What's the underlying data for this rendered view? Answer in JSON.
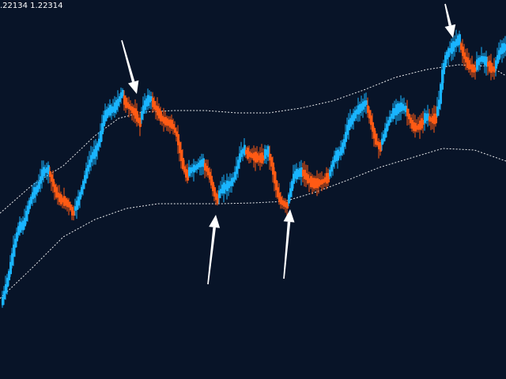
{
  "header": {
    "price_readout": ".22134 1.22314"
  },
  "colors": {
    "background": "#081428",
    "bull": "#19b4ff",
    "bear": "#ff5a14",
    "band": "#ffffff",
    "arrow": "#ffffff"
  },
  "chart_data": {
    "type": "candlestick",
    "title": "",
    "xlabel": "",
    "ylabel": "",
    "ylim": [
      0,
      480
    ],
    "grid": false,
    "candle_segments": [
      {
        "dir": "up",
        "points": [
          [
            2,
            385
          ],
          [
            6,
            370
          ],
          [
            12,
            345
          ],
          [
            18,
            312
          ],
          [
            24,
            288
          ],
          [
            30,
            285
          ],
          [
            36,
            262
          ],
          [
            42,
            245
          ],
          [
            48,
            238
          ],
          [
            54,
            218
          ],
          [
            60,
            215
          ]
        ]
      },
      {
        "dir": "down",
        "points": [
          [
            62,
            218
          ],
          [
            66,
            228
          ],
          [
            70,
            242
          ],
          [
            76,
            252
          ],
          [
            82,
            255
          ],
          [
            88,
            260
          ],
          [
            92,
            270
          ]
        ]
      },
      {
        "dir": "up",
        "points": [
          [
            94,
            266
          ],
          [
            98,
            258
          ],
          [
            104,
            238
          ],
          [
            110,
            216
          ],
          [
            116,
            198
          ],
          [
            120,
            194
          ],
          [
            126,
            178
          ],
          [
            132,
            148
          ],
          [
            138,
            140
          ],
          [
            144,
            138
          ],
          [
            150,
            128
          ],
          [
            154,
            118
          ]
        ]
      },
      {
        "dir": "down",
        "points": [
          [
            156,
            125
          ],
          [
            160,
            132
          ],
          [
            166,
            138
          ],
          [
            172,
            145
          ],
          [
            176,
            155
          ]
        ]
      },
      {
        "dir": "up",
        "points": [
          [
            178,
            150
          ],
          [
            182,
            135
          ],
          [
            186,
            128
          ],
          [
            190,
            125
          ]
        ]
      },
      {
        "dir": "down",
        "points": [
          [
            192,
            128
          ],
          [
            196,
            135
          ],
          [
            200,
            142
          ],
          [
            206,
            152
          ],
          [
            212,
            155
          ],
          [
            218,
            158
          ],
          [
            224,
            172
          ],
          [
            228,
            192
          ],
          [
            232,
            212
          ],
          [
            236,
            222
          ]
        ]
      },
      {
        "dir": "up",
        "points": [
          [
            238,
            218
          ],
          [
            242,
            215
          ],
          [
            248,
            212
          ],
          [
            252,
            208
          ],
          [
            256,
            206
          ]
        ]
      },
      {
        "dir": "down",
        "points": [
          [
            258,
            210
          ],
          [
            262,
            215
          ],
          [
            266,
            225
          ],
          [
            270,
            240
          ],
          [
            274,
            252
          ]
        ]
      },
      {
        "dir": "up",
        "points": [
          [
            276,
            248
          ],
          [
            280,
            240
          ],
          [
            286,
            236
          ],
          [
            292,
            232
          ],
          [
            296,
            226
          ],
          [
            300,
            212
          ],
          [
            304,
            196
          ],
          [
            308,
            190
          ]
        ]
      },
      {
        "dir": "down",
        "points": [
          [
            310,
            192
          ],
          [
            316,
            196
          ],
          [
            320,
            198
          ],
          [
            326,
            200
          ],
          [
            332,
            200
          ]
        ]
      },
      {
        "dir": "up",
        "points": [
          [
            334,
            196
          ],
          [
            338,
            192
          ]
        ]
      },
      {
        "dir": "down",
        "points": [
          [
            340,
            196
          ],
          [
            344,
            208
          ],
          [
            348,
            230
          ],
          [
            352,
            248
          ],
          [
            356,
            256
          ],
          [
            362,
            260
          ]
        ]
      },
      {
        "dir": "up",
        "points": [
          [
            364,
            256
          ],
          [
            368,
            240
          ],
          [
            372,
            222
          ],
          [
            376,
            220
          ],
          [
            380,
            218
          ]
        ]
      },
      {
        "dir": "down",
        "points": [
          [
            382,
            218
          ],
          [
            386,
            222
          ],
          [
            390,
            228
          ],
          [
            396,
            232
          ],
          [
            402,
            232
          ],
          [
            408,
            230
          ],
          [
            414,
            225
          ]
        ]
      },
      {
        "dir": "up",
        "points": [
          [
            416,
            222
          ],
          [
            420,
            210
          ],
          [
            424,
            198
          ],
          [
            428,
            196
          ],
          [
            432,
            190
          ],
          [
            436,
            178
          ],
          [
            440,
            160
          ],
          [
            446,
            150
          ],
          [
            452,
            140
          ],
          [
            458,
            135
          ],
          [
            462,
            130
          ]
        ]
      },
      {
        "dir": "down",
        "points": [
          [
            464,
            135
          ],
          [
            468,
            148
          ],
          [
            472,
            165
          ],
          [
            476,
            180
          ],
          [
            480,
            186
          ]
        ]
      },
      {
        "dir": "up",
        "points": [
          [
            482,
            182
          ],
          [
            486,
            172
          ],
          [
            490,
            158
          ],
          [
            496,
            145
          ],
          [
            502,
            138
          ],
          [
            508,
            135
          ],
          [
            512,
            138
          ]
        ]
      },
      {
        "dir": "down",
        "points": [
          [
            514,
            140
          ],
          [
            518,
            150
          ],
          [
            522,
            160
          ],
          [
            528,
            162
          ],
          [
            534,
            155
          ]
        ]
      },
      {
        "dir": "up",
        "points": [
          [
            536,
            150
          ],
          [
            540,
            148
          ]
        ]
      },
      {
        "dir": "down",
        "points": [
          [
            542,
            150
          ],
          [
            546,
            152
          ],
          [
            550,
            150
          ]
        ]
      },
      {
        "dir": "up",
        "points": [
          [
            552,
            145
          ],
          [
            556,
            128
          ],
          [
            560,
            92
          ],
          [
            564,
            72
          ],
          [
            568,
            65
          ],
          [
            572,
            60
          ],
          [
            576,
            55
          ],
          [
            580,
            50
          ]
        ]
      },
      {
        "dir": "down",
        "points": [
          [
            582,
            56
          ],
          [
            586,
            68
          ],
          [
            590,
            78
          ],
          [
            596,
            86
          ],
          [
            600,
            88
          ]
        ]
      },
      {
        "dir": "up",
        "points": [
          [
            602,
            84
          ],
          [
            606,
            76
          ],
          [
            610,
            74
          ],
          [
            614,
            78
          ]
        ]
      },
      {
        "dir": "down",
        "points": [
          [
            616,
            80
          ],
          [
            620,
            85
          ],
          [
            624,
            88
          ]
        ]
      },
      {
        "dir": "up",
        "points": [
          [
            626,
            85
          ],
          [
            630,
            72
          ],
          [
            634,
            62
          ],
          [
            638,
            60
          ]
        ]
      }
    ],
    "bands": {
      "upper": [
        [
          0,
          270
        ],
        [
          40,
          235
        ],
        [
          80,
          210
        ],
        [
          120,
          172
        ],
        [
          150,
          150
        ],
        [
          180,
          142
        ],
        [
          220,
          140
        ],
        [
          260,
          140
        ],
        [
          300,
          143
        ],
        [
          340,
          143
        ],
        [
          380,
          137
        ],
        [
          420,
          128
        ],
        [
          460,
          114
        ],
        [
          500,
          98
        ],
        [
          540,
          88
        ],
        [
          580,
          82
        ],
        [
          620,
          84
        ],
        [
          640,
          96
        ]
      ],
      "lower": [
        [
          0,
          378
        ],
        [
          40,
          340
        ],
        [
          80,
          300
        ],
        [
          120,
          278
        ],
        [
          160,
          264
        ],
        [
          200,
          258
        ],
        [
          240,
          258
        ],
        [
          280,
          258
        ],
        [
          320,
          257
        ],
        [
          360,
          255
        ],
        [
          400,
          243
        ],
        [
          440,
          228
        ],
        [
          480,
          212
        ],
        [
          520,
          200
        ],
        [
          560,
          188
        ],
        [
          600,
          190
        ],
        [
          640,
          204
        ]
      ]
    },
    "arrows": [
      {
        "tail": [
          154,
          51
        ],
        "head": [
          173,
          119
        ]
      },
      {
        "tail": [
          263,
          360
        ],
        "head": [
          273,
          272
        ]
      },
      {
        "tail": [
          359,
          353
        ],
        "head": [
          367,
          265
        ]
      },
      {
        "tail": [
          563,
          5
        ],
        "head": [
          573,
          48
        ]
      }
    ]
  }
}
